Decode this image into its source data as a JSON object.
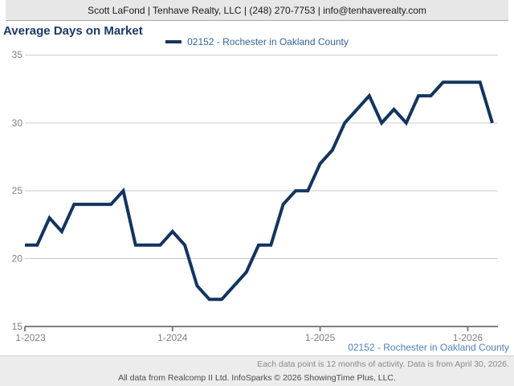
{
  "header": {
    "contact_line": "Scott LaFond | Tenhave Realty, LLC | (248) 270-7753 | info@tenhaverealty.com"
  },
  "title": "Average Days on Market",
  "legend": {
    "label": "02152 - Rochester in Oakland County"
  },
  "footer": {
    "series_label": "02152 - Rochester in Oakland County",
    "note": "Each data point is 12 months of activity. Data is from April 30, 2026.",
    "attribution": "All data from Realcomp II Ltd. InfoSparks © 2026 ShowingTime Plus, LLC."
  },
  "colors": {
    "line": "#12355e",
    "title_text": "#1b3a68",
    "legend_text": "#336699",
    "series_label_text": "#4d7fba",
    "grid": "#cccccc",
    "axis": "#808080",
    "header_bg": "#e7e7e7",
    "footer_bg": "#ececec"
  },
  "chart_data": {
    "type": "line",
    "title": "Average Days on Market",
    "xlabel": "",
    "ylabel": "",
    "ylim": [
      15,
      35
    ],
    "y_ticks": [
      15,
      20,
      25,
      30,
      35
    ],
    "x_tick_labels": [
      "1-2023",
      "1-2024",
      "1-2025",
      "1-2026"
    ],
    "grid": true,
    "legend_position": "top-center",
    "x": [
      "1-2023",
      "2-2023",
      "3-2023",
      "4-2023",
      "5-2023",
      "6-2023",
      "7-2023",
      "8-2023",
      "9-2023",
      "10-2023",
      "11-2023",
      "12-2023",
      "1-2024",
      "2-2024",
      "3-2024",
      "4-2024",
      "5-2024",
      "6-2024",
      "7-2024",
      "8-2024",
      "9-2024",
      "10-2024",
      "11-2024",
      "12-2024",
      "1-2025",
      "2-2025",
      "3-2025",
      "4-2025",
      "5-2025",
      "6-2025",
      "7-2025",
      "8-2025",
      "9-2025",
      "10-2025",
      "11-2025",
      "12-2025",
      "1-2026",
      "2-2026",
      "3-2026"
    ],
    "series": [
      {
        "name": "02152 - Rochester in Oakland County",
        "values": [
          21,
          21,
          23,
          22,
          24,
          24,
          24,
          24,
          25,
          21,
          21,
          21,
          22,
          21,
          18,
          17,
          17,
          18,
          19,
          21,
          21,
          24,
          25,
          25,
          27,
          28,
          30,
          31,
          32,
          30,
          31,
          30,
          32,
          32,
          33,
          33,
          33,
          33,
          30
        ]
      }
    ]
  }
}
